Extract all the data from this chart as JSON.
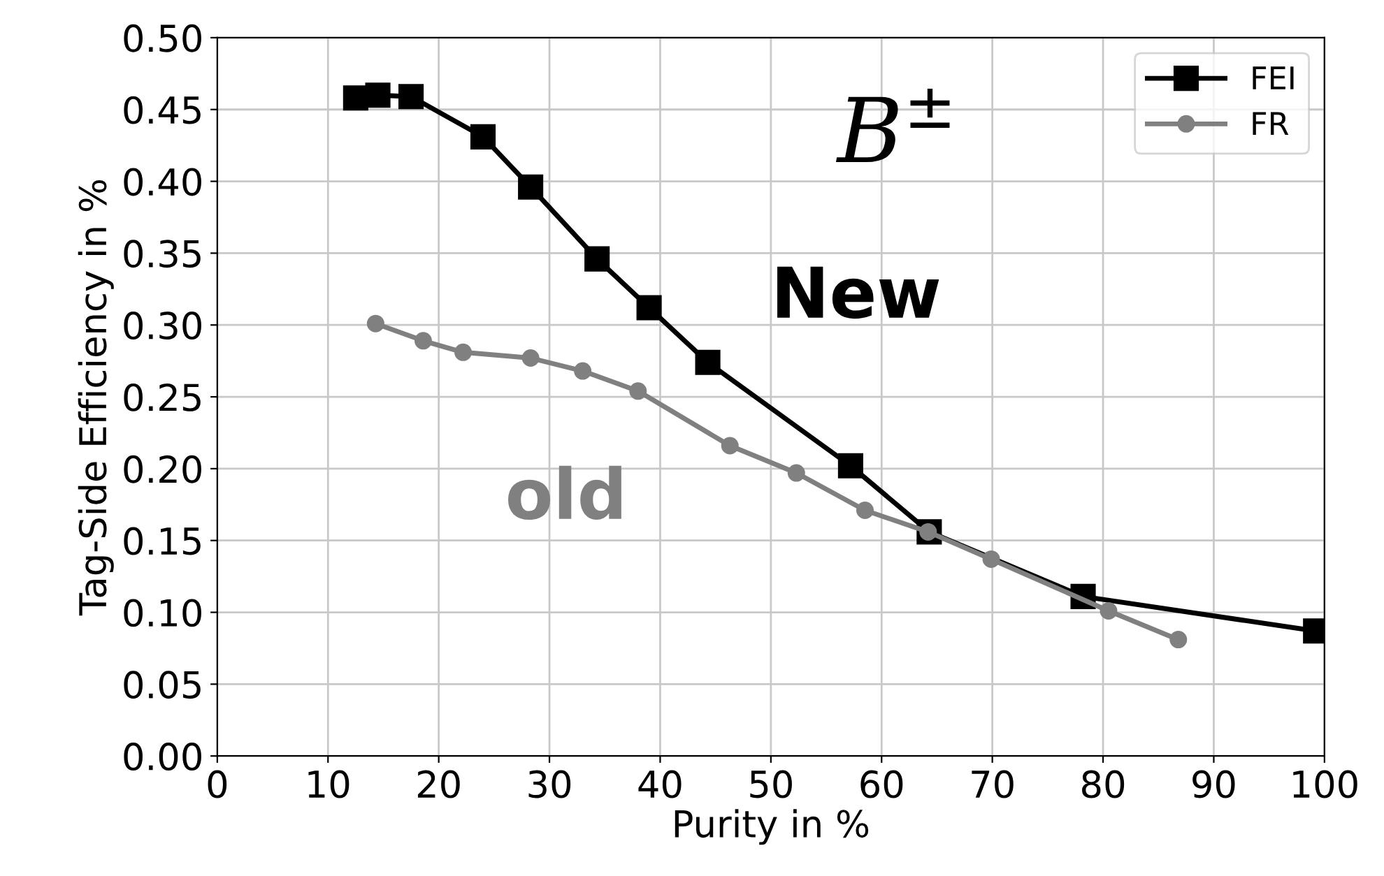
{
  "chart_data": {
    "type": "line",
    "xlabel": "Purity in %",
    "ylabel": "Tag-Side Efficiency in %",
    "xlim": [
      0,
      100
    ],
    "xticks": [
      0,
      10,
      20,
      30,
      40,
      50,
      60,
      70,
      80,
      90,
      100
    ],
    "ylim": [
      0,
      0.5
    ],
    "yticks": [
      {
        "value": 0,
        "label": "0.00"
      },
      {
        "value": 0.05,
        "label": "0.05"
      },
      {
        "value": 0.1,
        "label": "0.10"
      },
      {
        "value": 0.15,
        "label": "0.15"
      },
      {
        "value": 0.2,
        "label": "0.20"
      },
      {
        "value": 0.25,
        "label": "0.25"
      },
      {
        "value": 0.3,
        "label": "0.30"
      },
      {
        "value": 0.35,
        "label": "0.35"
      },
      {
        "value": 0.4,
        "label": "0.40"
      },
      {
        "value": 0.45,
        "label": "0.45"
      },
      {
        "value": 0.5,
        "label": "0.50"
      }
    ],
    "grid": true,
    "legend": "top right",
    "line_style": "solid",
    "series": [
      {
        "name": "FEI",
        "color": "#000000",
        "marker": "square",
        "x": [
          12.5,
          14.5,
          17.5,
          24.0,
          28.3,
          34.3,
          39.0,
          44.3,
          57.2,
          64.3,
          78.2,
          99.2
        ],
        "values": [
          0.458,
          0.46,
          0.459,
          0.431,
          0.396,
          0.346,
          0.312,
          0.274,
          0.202,
          0.156,
          0.111,
          0.087
        ]
      },
      {
        "name": "FR",
        "color": "#808080",
        "marker": "circle",
        "x": [
          14.3,
          18.6,
          22.2,
          28.3,
          33.0,
          38.0,
          46.3,
          52.3,
          58.5,
          64.2,
          69.9,
          80.5,
          86.8
        ],
        "values": [
          0.301,
          0.289,
          0.281,
          0.277,
          0.268,
          0.254,
          0.216,
          0.197,
          0.171,
          0.156,
          0.137,
          0.101,
          0.081
        ]
      }
    ],
    "annotations": [
      "B$^{±}$",
      "New",
      "old"
    ]
  }
}
